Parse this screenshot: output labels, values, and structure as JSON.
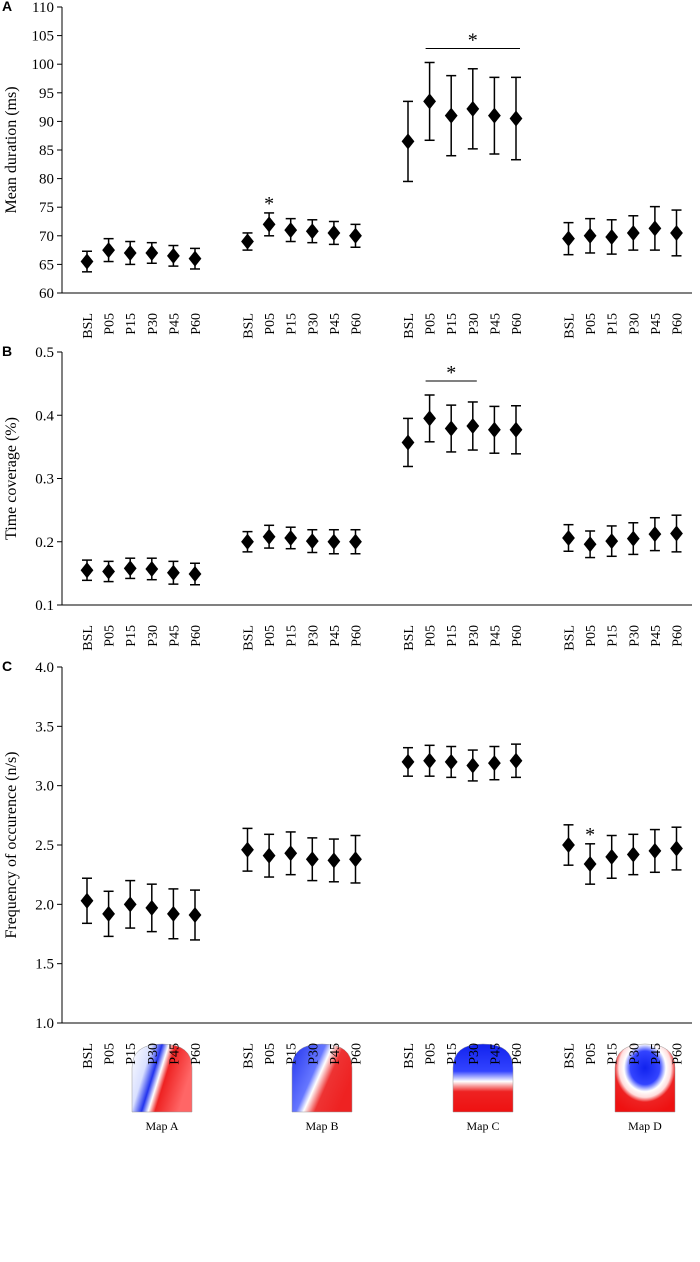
{
  "chart_data": [
    {
      "type": "errorbar",
      "panel": "A",
      "ylabel": "Mean duration (ms)",
      "categories": [
        "BSL",
        "P05",
        "P15",
        "P30",
        "P45",
        "P60",
        "BSL",
        "P05",
        "P15",
        "P30",
        "P45",
        "P60",
        "BSL",
        "P05",
        "P15",
        "P30",
        "P45",
        "P60",
        "BSL",
        "P05",
        "P15",
        "P30",
        "P45",
        "P60"
      ],
      "values": [
        65.5,
        67.5,
        67,
        67,
        66.5,
        66,
        69,
        72,
        71,
        70.8,
        70.5,
        70,
        86.5,
        93.5,
        91,
        92.2,
        91,
        90.5,
        69.5,
        70,
        69.8,
        70.5,
        71.3,
        70.5
      ],
      "errors": [
        1.8,
        2,
        2,
        1.8,
        1.8,
        1.8,
        1.5,
        2,
        2,
        2,
        2,
        2,
        7,
        6.8,
        7,
        7,
        6.7,
        7.2,
        2.8,
        3,
        3,
        3,
        3.8,
        4
      ],
      "ylim": [
        60,
        110
      ],
      "yticks": [
        60,
        65,
        70,
        75,
        80,
        85,
        90,
        95,
        100,
        105,
        110
      ],
      "color": "#000000",
      "annotations": [
        "*",
        "*"
      ]
    },
    {
      "type": "errorbar",
      "panel": "B",
      "ylabel": "Time coverage (%)",
      "categories": [
        "BSL",
        "P05",
        "P15",
        "P30",
        "P45",
        "P60",
        "BSL",
        "P05",
        "P15",
        "P30",
        "P45",
        "P60",
        "BSL",
        "P05",
        "P15",
        "P30",
        "P45",
        "P60",
        "BSL",
        "P05",
        "P15",
        "P30",
        "P45",
        "P60"
      ],
      "values": [
        0.155,
        0.153,
        0.158,
        0.157,
        0.151,
        0.149,
        0.2,
        0.208,
        0.206,
        0.201,
        0.2,
        0.2,
        0.357,
        0.395,
        0.379,
        0.383,
        0.377,
        0.377,
        0.206,
        0.196,
        0.201,
        0.205,
        0.212,
        0.213
      ],
      "errors": [
        0.016,
        0.016,
        0.016,
        0.017,
        0.018,
        0.017,
        0.016,
        0.018,
        0.017,
        0.018,
        0.019,
        0.019,
        0.038,
        0.037,
        0.037,
        0.038,
        0.037,
        0.038,
        0.021,
        0.021,
        0.024,
        0.025,
        0.026,
        0.029
      ],
      "ylim": [
        0.1,
        0.5
      ],
      "yticks": [
        0.1,
        0.2,
        0.3,
        0.4,
        0.5
      ],
      "color": "#000000",
      "annotations": [
        "*"
      ]
    },
    {
      "type": "errorbar",
      "panel": "C",
      "ylabel": "Frequency of occurence (n/s)",
      "categories": [
        "BSL",
        "P05",
        "P15",
        "P30",
        "P45",
        "P60",
        "BSL",
        "P05",
        "P15",
        "P30",
        "P45",
        "P60",
        "BSL",
        "P05",
        "P15",
        "P30",
        "P45",
        "P60",
        "BSL",
        "P05",
        "P15",
        "P30",
        "P45",
        "P60"
      ],
      "values": [
        2.03,
        1.92,
        2,
        1.97,
        1.92,
        1.91,
        2.46,
        2.41,
        2.43,
        2.38,
        2.37,
        2.38,
        3.2,
        3.21,
        3.2,
        3.17,
        3.19,
        3.21,
        2.5,
        2.34,
        2.4,
        2.42,
        2.45,
        2.47
      ],
      "errors": [
        0.19,
        0.19,
        0.2,
        0.2,
        0.21,
        0.21,
        0.18,
        0.18,
        0.18,
        0.18,
        0.18,
        0.2,
        0.12,
        0.13,
        0.13,
        0.13,
        0.14,
        0.14,
        0.17,
        0.17,
        0.18,
        0.17,
        0.18,
        0.18
      ],
      "ylim": [
        1,
        4
      ],
      "yticks": [
        {
          "value": 1,
          "label": "1.0"
        },
        {
          "value": 1.5,
          "label": "1.5"
        },
        {
          "value": 2,
          "label": "2.0"
        },
        {
          "value": 2.5,
          "label": "2.5"
        },
        {
          "value": 3,
          "label": "3.0"
        },
        {
          "value": 3.5,
          "label": "3.5"
        },
        {
          "value": 4,
          "label": "4.0"
        }
      ],
      "color": "#000000",
      "annotations": [
        "*"
      ]
    }
  ],
  "map_labels": [
    "Map A",
    "Map B",
    "Map C",
    "Map D"
  ]
}
